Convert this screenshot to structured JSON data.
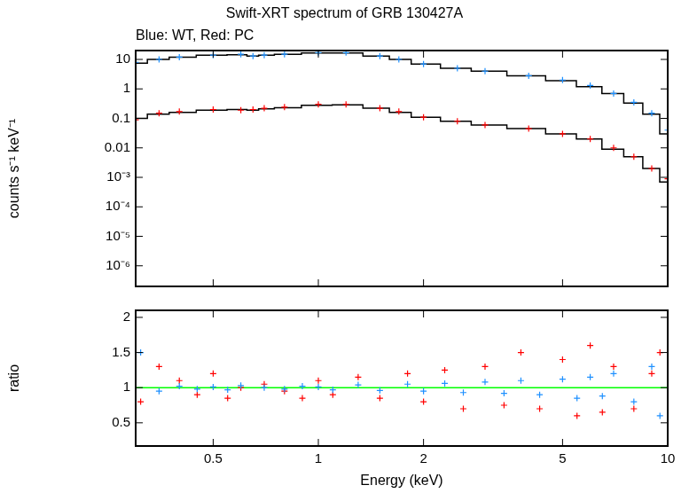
{
  "chart_data": [
    {
      "type": "scatter",
      "title": "Swift-XRT spectrum of GRB 130427A",
      "subtitle": "Blue: WT, Red: PC",
      "y_label": "counts s⁻¹ keV⁻¹",
      "log": true,
      "grid": false,
      "tick_labels": "y",
      "xlim": [
        0.3,
        10
      ],
      "xticks": [
        0.5,
        1,
        2,
        5,
        10
      ],
      "ylim": [
        2e-07,
        20
      ],
      "yticks": [
        {
          "value": 1e-06,
          "label": "10⁻⁶"
        },
        {
          "value": 1e-05,
          "label": "10⁻⁵"
        },
        {
          "value": 0.0001,
          "label": "10⁻⁴"
        },
        {
          "value": 0.001,
          "label": "10⁻³"
        },
        0.01,
        0.1,
        1,
        10
      ],
      "x": [
        0.3,
        0.35,
        0.4,
        0.5,
        0.6,
        0.65,
        0.7,
        0.8,
        1,
        1.2,
        1.5,
        1.7,
        2,
        2.5,
        3,
        4,
        5,
        6,
        7,
        8,
        9,
        10
      ],
      "series": [
        {
          "name": "WT",
          "color": "#1e90ff",
          "marker": "cross",
          "line_style": "none",
          "values": [
            8,
            10,
            12,
            14,
            15,
            13,
            14,
            15,
            17,
            17,
            13,
            10,
            7,
            5,
            4,
            2.8,
            2,
            1.3,
            0.7,
            0.35,
            0.15,
            0.04
          ]
        },
        {
          "color": "#000000",
          "marker": "none",
          "line_style": "step",
          "values": [
            7.5,
            10,
            12,
            14,
            14.5,
            13,
            14,
            15,
            16.5,
            16.5,
            13,
            10,
            7,
            5,
            4,
            2.8,
            1.9,
            1.2,
            0.7,
            0.33,
            0.14,
            0.03
          ]
        },
        {
          "name": "PC",
          "color": "#ff0000",
          "marker": "cross",
          "line_style": "none",
          "values": [
            0.09,
            0.15,
            0.17,
            0.2,
            0.19,
            0.2,
            0.22,
            0.24,
            0.3,
            0.3,
            0.22,
            0.17,
            0.11,
            0.08,
            0.06,
            0.045,
            0.03,
            0.02,
            0.01,
            0.005,
            0.002,
            0.0009
          ]
        },
        {
          "color": "#000000",
          "marker": "none",
          "line_style": "step",
          "values": [
            0.1,
            0.14,
            0.16,
            0.19,
            0.2,
            0.19,
            0.21,
            0.23,
            0.28,
            0.29,
            0.22,
            0.16,
            0.11,
            0.08,
            0.06,
            0.045,
            0.03,
            0.02,
            0.009,
            0.005,
            0.002,
            0.0007
          ]
        }
      ]
    },
    {
      "type": "scatter",
      "x_label": "Energy (keV)",
      "y_label": "ratio",
      "log": "x",
      "grid": false,
      "xlim": [
        0.3,
        10
      ],
      "xticks": [
        0.5,
        1,
        2,
        5,
        10
      ],
      "ylim": [
        0.17,
        2.1
      ],
      "yticks": [
        0.5,
        1,
        1.5,
        2
      ],
      "x": [
        0.31,
        0.35,
        0.4,
        0.45,
        0.5,
        0.55,
        0.6,
        0.7,
        0.8,
        0.9,
        1,
        1.1,
        1.3,
        1.5,
        1.8,
        2,
        2.3,
        2.6,
        3,
        3.4,
        3.8,
        4.3,
        5,
        5.5,
        6,
        6.5,
        7,
        8,
        9,
        9.5
      ],
      "series": [
        {
          "name": "WT",
          "color": "#1e90ff",
          "marker": "cross",
          "line_style": "none",
          "values": [
            1.5,
            0.95,
            1.02,
            0.98,
            1.01,
            0.97,
            1.03,
            1.0,
            0.98,
            1.02,
            1.01,
            0.97,
            1.04,
            0.96,
            1.05,
            0.95,
            1.06,
            0.93,
            1.08,
            0.92,
            1.1,
            0.9,
            1.12,
            0.85,
            1.15,
            0.88,
            1.2,
            0.8,
            1.3,
            0.6
          ]
        },
        {
          "name": "PC",
          "color": "#ff0000",
          "marker": "cross",
          "line_style": "none",
          "values": [
            0.8,
            1.3,
            1.1,
            0.9,
            1.2,
            0.85,
            1.0,
            1.05,
            0.95,
            0.85,
            1.1,
            0.9,
            1.15,
            0.85,
            1.2,
            0.8,
            1.25,
            0.7,
            1.3,
            0.75,
            1.5,
            0.7,
            1.4,
            0.6,
            1.6,
            0.65,
            1.3,
            0.7,
            1.2,
            1.5
          ]
        },
        {
          "color": "#00ff00",
          "marker": "none",
          "line_style": "solid",
          "x": [
            0.3,
            10
          ],
          "values": [
            1,
            1
          ]
        }
      ]
    }
  ]
}
